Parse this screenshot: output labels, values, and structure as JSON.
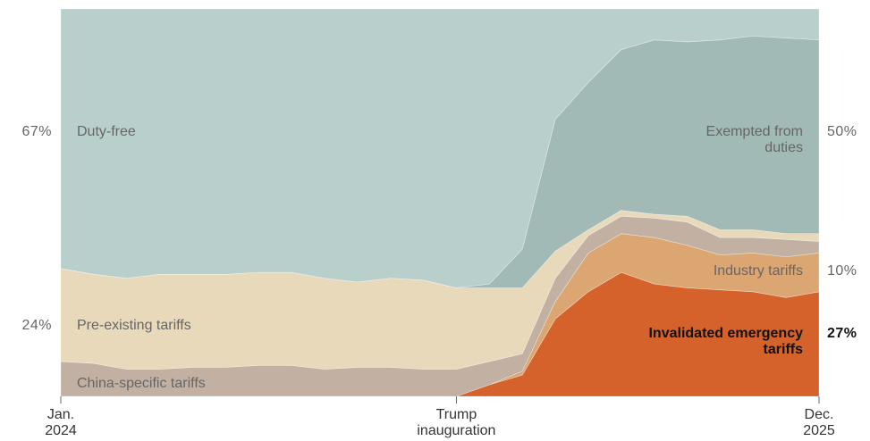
{
  "chart_data": {
    "type": "stacked_area",
    "categories": [
      "Jan. 2024",
      null,
      null,
      null,
      null,
      null,
      null,
      null,
      null,
      null,
      null,
      null,
      "Trump inauguration",
      null,
      null,
      null,
      null,
      null,
      null,
      null,
      null,
      null,
      null,
      "Dec. 2025"
    ],
    "ylim": [
      0,
      100
    ],
    "series": [
      {
        "name": "Invalidated emergency tariffs",
        "color": "#d5612b",
        "values": [
          0,
          0,
          0,
          0,
          0,
          0,
          0,
          0,
          0,
          0,
          0,
          0,
          0,
          3,
          5.5,
          20,
          27,
          32,
          29,
          28,
          27.5,
          27,
          25.5,
          27
        ],
        "value_labels": [
          null,
          null,
          null,
          null,
          null,
          null,
          null,
          null,
          null,
          null,
          null,
          null,
          null,
          null,
          null,
          null,
          null,
          null,
          null,
          null,
          null,
          null,
          null,
          "27%"
        ]
      },
      {
        "name": "Industry tariffs",
        "color": "#dca672",
        "values": [
          0,
          0,
          0,
          0,
          0,
          0,
          0,
          0,
          0,
          0,
          0,
          0,
          0,
          0,
          1,
          4.5,
          10,
          10,
          12,
          11,
          9,
          10,
          10.5,
          10
        ],
        "value_labels": [
          null,
          null,
          null,
          null,
          null,
          null,
          null,
          null,
          null,
          null,
          null,
          null,
          null,
          null,
          null,
          null,
          null,
          null,
          null,
          null,
          null,
          null,
          null,
          "10%"
        ]
      },
      {
        "name": "China-specific tariffs",
        "color": "#c2b0a2",
        "values": [
          9,
          8.5,
          7,
          7,
          7.5,
          7.5,
          8,
          8,
          7,
          7.5,
          7.5,
          7,
          7,
          6,
          4.5,
          6,
          4.5,
          4.5,
          5,
          6,
          4.5,
          4,
          4.5,
          3
        ]
      },
      {
        "name": "Pre-existing tariffs",
        "color": "#e8d9bb",
        "values": [
          24,
          23,
          23.5,
          24.5,
          24,
          24,
          24,
          24,
          23.5,
          22,
          23,
          23,
          21,
          19,
          17,
          7,
          1.5,
          1.5,
          1,
          1.5,
          2,
          2,
          1.5,
          2
        ],
        "value_labels": [
          "24%",
          null,
          null,
          null,
          null,
          null,
          null,
          null,
          null,
          null,
          null,
          null,
          null,
          null,
          null,
          null,
          null,
          null,
          null,
          null,
          null,
          null,
          null,
          null
        ]
      },
      {
        "name": "Exempted from duties",
        "color": "#a2bab5",
        "values": [
          0,
          0,
          0,
          0,
          0,
          0,
          0,
          0,
          0,
          0,
          0,
          0,
          0,
          1,
          10,
          34,
          38,
          41.5,
          45,
          45,
          49,
          50,
          50.5,
          50
        ],
        "value_labels": [
          null,
          null,
          null,
          null,
          null,
          null,
          null,
          null,
          null,
          null,
          null,
          null,
          null,
          null,
          null,
          null,
          null,
          null,
          null,
          null,
          null,
          null,
          null,
          "50%"
        ]
      },
      {
        "name": "Duty-free",
        "color": "#b9cfcb",
        "values": [
          67,
          68.5,
          69.5,
          68.5,
          68.5,
          68.5,
          68,
          68,
          69.5,
          70.5,
          69.5,
          70,
          72,
          71,
          62,
          28.5,
          19,
          10.5,
          8,
          8.5,
          8,
          7,
          7.5,
          8
        ],
        "value_labels": [
          "67%",
          null,
          null,
          null,
          null,
          null,
          null,
          null,
          null,
          null,
          null,
          null,
          null,
          null,
          null,
          null,
          null,
          null,
          null,
          null,
          null,
          null,
          null,
          null
        ]
      }
    ]
  }
}
